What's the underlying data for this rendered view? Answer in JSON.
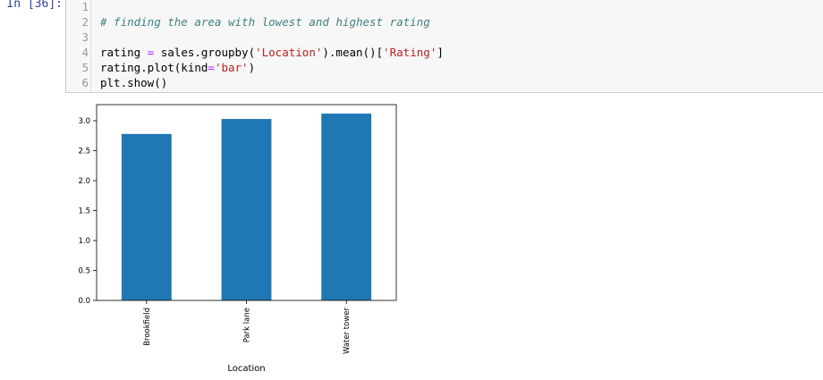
{
  "cell": {
    "prompt": "In [36]:",
    "lines": [
      {
        "num": "1",
        "segments": []
      },
      {
        "num": "2",
        "segments": [
          {
            "cls": "cm-comment",
            "text": "# finding the area with lowest and highest rating"
          }
        ]
      },
      {
        "num": "3",
        "segments": []
      },
      {
        "num": "4",
        "segments": [
          {
            "cls": "cm-def",
            "text": "rating "
          },
          {
            "cls": "cm-op",
            "text": "="
          },
          {
            "cls": "cm-def",
            "text": " sales.groupby("
          },
          {
            "cls": "cm-string",
            "text": "'Location'"
          },
          {
            "cls": "cm-def",
            "text": ").mean()["
          },
          {
            "cls": "cm-string",
            "text": "'Rating'"
          },
          {
            "cls": "cm-def",
            "text": "]"
          }
        ]
      },
      {
        "num": "5",
        "segments": [
          {
            "cls": "cm-def",
            "text": "rating.plot(kind"
          },
          {
            "cls": "cm-op",
            "text": "="
          },
          {
            "cls": "cm-string",
            "text": "'bar'"
          },
          {
            "cls": "cm-def",
            "text": ")"
          }
        ]
      },
      {
        "num": "6",
        "segments": [
          {
            "cls": "cm-def",
            "text": "plt.show()"
          }
        ]
      }
    ]
  },
  "chart_data": {
    "type": "bar",
    "categories": [
      "Brookfield",
      "Park lane",
      "Water tower"
    ],
    "values": [
      2.78,
      3.03,
      3.12
    ],
    "xlabel": "Location",
    "ylabel": "",
    "ylim": [
      0,
      3.27
    ],
    "yticks": [
      "0.0",
      "0.5",
      "1.0",
      "1.5",
      "2.0",
      "2.5",
      "3.0"
    ],
    "bar_color": "#1f77b4",
    "grid": false
  }
}
